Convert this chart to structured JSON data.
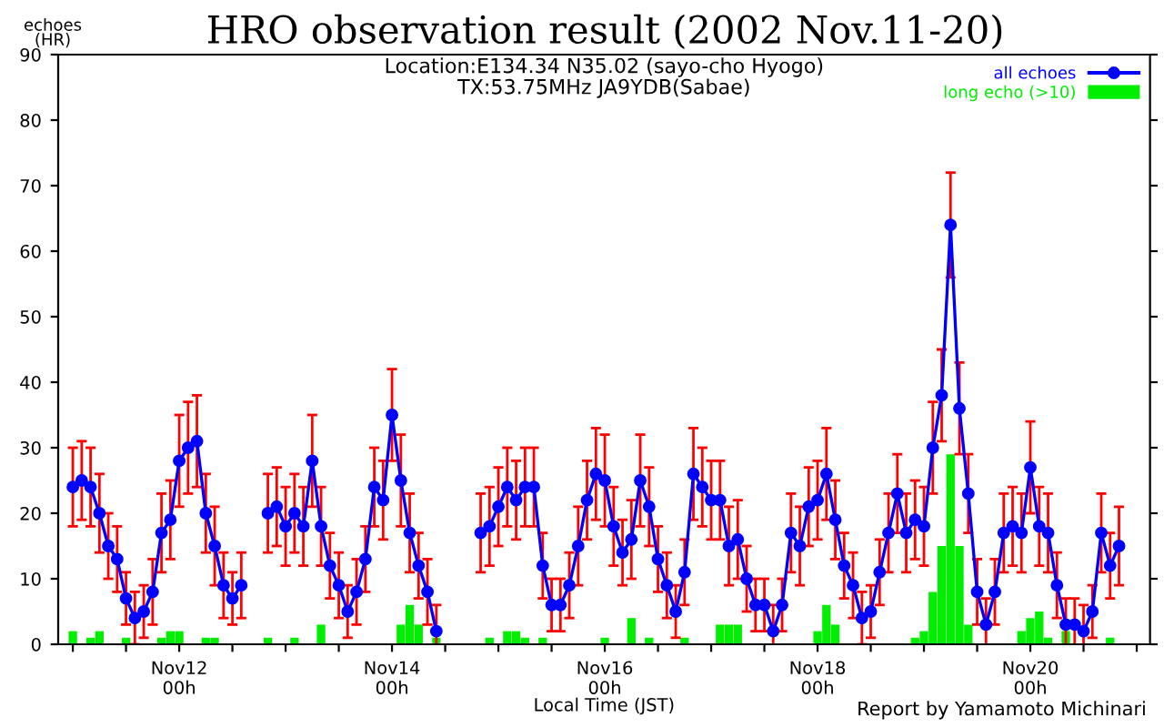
{
  "chart_data": {
    "type": "line",
    "title": "HRO observation result (2002 Nov.11-20)",
    "subtitle": "Location:E134.34 N35.02 (sayo-cho Hyogo)\nTX:53.75MHz JA9YDB(Sabae)",
    "xlabel": "Local Time (JST)",
    "ylabel": "echoes\n(HR)",
    "annotations": [
      "Report by Yamamoto Michinari"
    ],
    "x": [
      "2002-11-11T00:00",
      "2002-11-11T02:00",
      "2002-11-11T04:00",
      "2002-11-11T06:00",
      "2002-11-11T08:00",
      "2002-11-11T10:00",
      "2002-11-11T12:00",
      "2002-11-11T14:00",
      "2002-11-11T16:00",
      "2002-11-11T18:00",
      "2002-11-11T20:00",
      "2002-11-11T22:00",
      "2002-11-12T00:00",
      "2002-11-12T02:00",
      "2002-11-12T04:00",
      "2002-11-12T06:00",
      "2002-11-12T08:00",
      "2002-11-12T10:00",
      "2002-11-12T12:00",
      "2002-11-12T14:00",
      "2002-11-12T16:00",
      "2002-11-12T18:00",
      "2002-11-12T20:00",
      "2002-11-12T22:00",
      "2002-11-13T00:00",
      "2002-11-13T02:00",
      "2002-11-13T04:00",
      "2002-11-13T06:00",
      "2002-11-13T08:00",
      "2002-11-13T10:00",
      "2002-11-13T12:00",
      "2002-11-13T14:00",
      "2002-11-13T16:00",
      "2002-11-13T18:00",
      "2002-11-13T20:00",
      "2002-11-13T22:00",
      "2002-11-14T00:00",
      "2002-11-14T02:00",
      "2002-11-14T04:00",
      "2002-11-14T06:00",
      "2002-11-14T08:00",
      "2002-11-14T10:00",
      "2002-11-14T12:00",
      "2002-11-14T14:00",
      "2002-11-14T16:00",
      "2002-11-14T18:00",
      "2002-11-14T20:00",
      "2002-11-14T22:00",
      "2002-11-15T00:00",
      "2002-11-15T02:00",
      "2002-11-15T04:00",
      "2002-11-15T06:00",
      "2002-11-15T08:00",
      "2002-11-15T10:00",
      "2002-11-15T12:00",
      "2002-11-15T14:00",
      "2002-11-15T16:00",
      "2002-11-15T18:00",
      "2002-11-15T20:00",
      "2002-11-15T22:00",
      "2002-11-16T00:00",
      "2002-11-16T02:00",
      "2002-11-16T04:00",
      "2002-11-16T06:00",
      "2002-11-16T08:00",
      "2002-11-16T10:00",
      "2002-11-16T12:00",
      "2002-11-16T14:00",
      "2002-11-16T16:00",
      "2002-11-16T18:00",
      "2002-11-16T20:00",
      "2002-11-16T22:00",
      "2002-11-17T00:00",
      "2002-11-17T02:00",
      "2002-11-17T04:00",
      "2002-11-17T06:00",
      "2002-11-17T08:00",
      "2002-11-17T10:00",
      "2002-11-17T12:00",
      "2002-11-17T14:00",
      "2002-11-17T16:00",
      "2002-11-17T18:00",
      "2002-11-17T20:00",
      "2002-11-17T22:00",
      "2002-11-18T00:00",
      "2002-11-18T02:00",
      "2002-11-18T04:00",
      "2002-11-18T06:00",
      "2002-11-18T08:00",
      "2002-11-18T10:00",
      "2002-11-18T12:00",
      "2002-11-18T14:00",
      "2002-11-18T16:00",
      "2002-11-18T18:00",
      "2002-11-18T20:00",
      "2002-11-18T22:00",
      "2002-11-19T00:00",
      "2002-11-19T02:00",
      "2002-11-19T04:00",
      "2002-11-19T06:00",
      "2002-11-19T08:00",
      "2002-11-19T10:00",
      "2002-11-19T12:00",
      "2002-11-19T14:00",
      "2002-11-19T16:00",
      "2002-11-19T18:00",
      "2002-11-19T20:00",
      "2002-11-19T22:00",
      "2002-11-20T00:00",
      "2002-11-20T02:00",
      "2002-11-20T04:00",
      "2002-11-20T06:00",
      "2002-11-20T08:00",
      "2002-11-20T10:00",
      "2002-11-20T12:00",
      "2002-11-20T14:00",
      "2002-11-20T16:00",
      "2002-11-20T18:00",
      "2002-11-20T20:00"
    ],
    "series": [
      {
        "name": "all echoes",
        "color": "#0000ff",
        "marker": "circle",
        "line_style": "solid",
        "values": [
          24,
          25,
          24,
          20,
          15,
          13,
          7,
          4,
          5,
          8,
          17,
          19,
          28,
          30,
          31,
          20,
          15,
          9,
          7,
          9,
          null,
          null,
          20,
          21,
          18,
          20,
          18,
          28,
          18,
          12,
          9,
          5,
          8,
          13,
          24,
          22,
          35,
          25,
          17,
          12,
          8,
          2,
          null,
          null,
          null,
          null,
          17,
          18,
          21,
          24,
          22,
          24,
          24,
          12,
          6,
          6,
          9,
          15,
          22,
          26,
          25,
          18,
          14,
          16,
          25,
          21,
          13,
          9,
          5,
          11,
          26,
          24,
          22,
          22,
          15,
          16,
          10,
          6,
          6,
          2,
          6,
          17,
          15,
          21,
          22,
          26,
          19,
          12,
          9,
          4,
          5,
          11,
          17,
          23,
          17,
          19,
          18,
          30,
          38,
          64,
          36,
          23,
          8,
          3,
          8,
          17,
          18,
          17,
          27,
          18,
          17,
          9,
          3,
          3,
          2,
          5,
          17,
          12,
          15
        ],
        "errors": [
          6,
          6,
          6,
          6,
          5,
          5,
          4,
          4,
          4,
          5,
          6,
          6,
          7,
          7,
          7,
          6,
          6,
          5,
          4,
          5,
          null,
          null,
          6,
          6,
          6,
          6,
          6,
          7,
          6,
          5,
          5,
          4,
          5,
          5,
          6,
          6,
          7,
          7,
          6,
          5,
          5,
          4,
          null,
          null,
          null,
          null,
          6,
          6,
          6,
          6,
          6,
          6,
          6,
          5,
          4,
          4,
          5,
          6,
          6,
          7,
          7,
          6,
          5,
          6,
          7,
          6,
          5,
          5,
          4,
          5,
          7,
          6,
          6,
          6,
          6,
          6,
          5,
          4,
          4,
          4,
          4,
          6,
          6,
          6,
          6,
          7,
          6,
          5,
          5,
          4,
          4,
          5,
          6,
          6,
          6,
          6,
          6,
          7,
          7,
          8,
          7,
          6,
          5,
          4,
          5,
          6,
          6,
          6,
          7,
          6,
          6,
          5,
          4,
          4,
          4,
          4,
          6,
          5,
          6
        ]
      },
      {
        "name": "long echo (>10)",
        "type": "bar",
        "color": "#00ee00",
        "values": [
          2,
          0,
          1,
          2,
          0,
          0,
          1,
          0,
          0,
          0,
          1,
          2,
          2,
          0,
          0,
          1,
          1,
          0,
          0,
          0,
          0,
          0,
          1,
          0,
          0,
          1,
          0,
          0,
          3,
          0,
          0,
          0,
          0,
          0,
          0,
          0,
          0,
          3,
          6,
          3,
          0,
          1,
          0,
          0,
          0,
          0,
          0,
          1,
          0,
          2,
          2,
          1,
          0,
          1,
          0,
          0,
          0,
          0,
          0,
          0,
          1,
          0,
          0,
          4,
          0,
          1,
          0,
          0,
          0,
          1,
          0,
          0,
          0,
          3,
          3,
          3,
          0,
          0,
          0,
          0,
          0,
          0,
          0,
          0,
          2,
          6,
          3,
          0,
          0,
          0,
          0,
          0,
          0,
          0,
          0,
          1,
          2,
          8,
          15,
          29,
          15,
          3,
          0,
          0,
          0,
          0,
          0,
          2,
          4,
          5,
          1,
          0,
          2,
          0,
          0,
          0,
          0,
          1,
          0
        ]
      }
    ],
    "xlim": [
      "2002-11-10T20:42",
      "2002-11-21T03:00"
    ],
    "ylim": [
      0,
      90
    ],
    "xticks": [
      {
        "value": "2002-11-11T00:00",
        "label": null
      },
      {
        "value": "2002-11-11T12:00",
        "label": null
      },
      {
        "value": "2002-11-12T00:00",
        "label": "Nov12\n00h"
      },
      {
        "value": "2002-11-12T12:00",
        "label": null
      },
      {
        "value": "2002-11-13T00:00",
        "label": null
      },
      {
        "value": "2002-11-13T12:00",
        "label": null
      },
      {
        "value": "2002-11-14T00:00",
        "label": "Nov14\n00h"
      },
      {
        "value": "2002-11-14T12:00",
        "label": null
      },
      {
        "value": "2002-11-15T00:00",
        "label": null
      },
      {
        "value": "2002-11-15T12:00",
        "label": null
      },
      {
        "value": "2002-11-16T00:00",
        "label": "Nov16\n00h"
      },
      {
        "value": "2002-11-16T12:00",
        "label": null
      },
      {
        "value": "2002-11-17T00:00",
        "label": null
      },
      {
        "value": "2002-11-17T12:00",
        "label": null
      },
      {
        "value": "2002-11-18T00:00",
        "label": "Nov18\n00h"
      },
      {
        "value": "2002-11-18T12:00",
        "label": null
      },
      {
        "value": "2002-11-19T00:00",
        "label": null
      },
      {
        "value": "2002-11-19T12:00",
        "label": null
      },
      {
        "value": "2002-11-20T00:00",
        "label": "Nov20\n00h"
      },
      {
        "value": "2002-11-20T12:00",
        "label": null
      },
      {
        "value": "2002-11-21T00:00",
        "label": null
      }
    ],
    "yticks": [
      0,
      10,
      20,
      30,
      40,
      50,
      60,
      70,
      80,
      90
    ],
    "grid": false,
    "legend": "top right"
  }
}
